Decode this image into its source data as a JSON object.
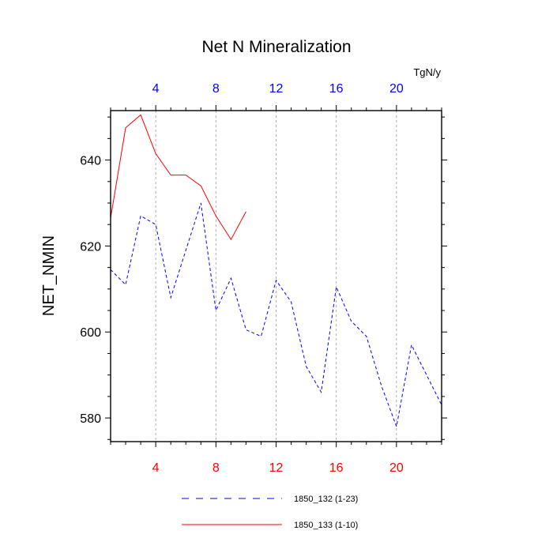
{
  "chart_data": {
    "type": "line",
    "title": "Net N Mineralization",
    "units": "TgN/y",
    "ylabel": "NET_NMIN",
    "xlim": [
      1,
      23
    ],
    "ylim": [
      574.5,
      651.5
    ],
    "xticks": [
      4,
      8,
      12,
      16,
      20
    ],
    "yticks": [
      580,
      600,
      620,
      640
    ],
    "grid": true,
    "legend_position": "bottom",
    "colors": {
      "top_ticks": "#0000ff",
      "bottom_ticks": "#ff0000",
      "axis": "#000000",
      "grid": "#999999"
    },
    "series": [
      {
        "name": "1850_132 (1-23)",
        "color": "#0000ff",
        "dash": "dashed",
        "x": [
          1,
          2,
          3,
          4,
          5,
          6,
          7,
          8,
          9,
          10,
          11,
          12,
          13,
          14,
          15,
          16,
          17,
          18,
          19,
          20,
          21,
          22,
          23
        ],
        "values": [
          614.5,
          611,
          627,
          625,
          608,
          619,
          630,
          605,
          612.5,
          600.5,
          599,
          612,
          607,
          592,
          586,
          610.5,
          602.5,
          599,
          587.5,
          578,
          597,
          590,
          583
        ]
      },
      {
        "name": "1850_133 (1-10)",
        "color": "#ff0000",
        "dash": "solid",
        "x": [
          1,
          2,
          3,
          4,
          5,
          6,
          7,
          8,
          9,
          10
        ],
        "values": [
          626.5,
          647.5,
          650.5,
          641.5,
          636.5,
          636.5,
          634,
          627,
          621.5,
          628
        ]
      }
    ]
  }
}
